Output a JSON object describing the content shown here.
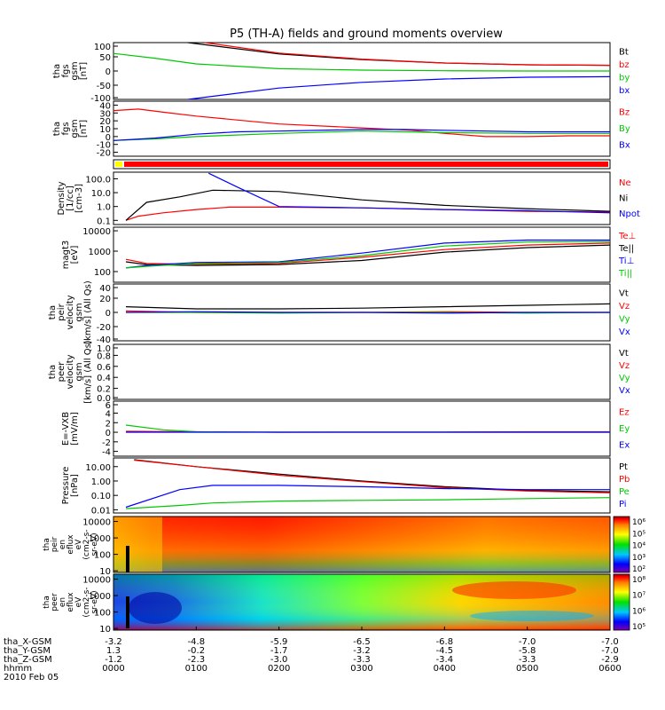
{
  "title": "P5 (TH-A) fields and ground moments overview",
  "chart_data": [
    {
      "type": "line",
      "ylabel": [
        "tha",
        "fgs",
        "gsm",
        "[nT]"
      ],
      "yticks": [
        "100",
        "50",
        "0",
        "-50",
        "-100"
      ],
      "ylim": [
        -100,
        100
      ],
      "series": [
        {
          "name": "Bt",
          "color": "#000000",
          "x": [
            0.9,
            2,
            3,
            4,
            5,
            6
          ],
          "y": [
            100,
            60,
            40,
            28,
            22,
            20
          ]
        },
        {
          "name": "bz",
          "color": "#ff0000",
          "x": [
            1.1,
            2,
            3,
            4,
            5,
            6
          ],
          "y": [
            100,
            63,
            42,
            28,
            22,
            20
          ]
        },
        {
          "name": "by",
          "color": "#00c800",
          "x": [
            0,
            0.5,
            1,
            2,
            3,
            4,
            5,
            6
          ],
          "y": [
            62,
            45,
            25,
            8,
            3,
            1,
            0,
            0
          ]
        },
        {
          "name": "bx",
          "color": "#0000ff",
          "x": [
            0.9,
            2,
            3,
            4,
            5,
            6
          ],
          "y": [
            -100,
            -60,
            -40,
            -28,
            -22,
            -20
          ]
        }
      ]
    },
    {
      "type": "line",
      "ylabel": [
        "tha",
        "fgs",
        "gsm",
        "[nT]"
      ],
      "yticks": [
        "40",
        "30",
        "20",
        "10",
        "0",
        "-10",
        "-20"
      ],
      "ylim": [
        -25,
        45
      ],
      "series": [
        {
          "name": "Bz",
          "color": "#ff0000",
          "x": [
            0,
            0.3,
            0.6,
            1,
            2,
            3,
            3.6,
            4,
            4.5,
            5,
            5.5,
            6
          ],
          "y": [
            33,
            35,
            31,
            26,
            16,
            11,
            8,
            4,
            0,
            0,
            1,
            1
          ]
        },
        {
          "name": "By",
          "color": "#00c800",
          "x": [
            0,
            0.5,
            1,
            2,
            3,
            3.5,
            4,
            5,
            6
          ],
          "y": [
            -5,
            -3,
            0,
            4,
            7,
            6,
            5,
            4,
            4
          ]
        },
        {
          "name": "Bx",
          "color": "#0000ff",
          "x": [
            0,
            0.5,
            1,
            1.5,
            2,
            3,
            3.5,
            4,
            5,
            6
          ],
          "y": [
            -5,
            -2,
            3,
            6,
            7,
            9,
            9,
            8,
            6,
            6
          ]
        }
      ]
    },
    {
      "type": "line",
      "ylabel": [
        "Density",
        "[1/cc]",
        "[cm-3]"
      ],
      "yticks": [
        "100.0",
        "10.0",
        "1.0",
        "0.1"
      ],
      "ylim": [
        0.05,
        300
      ],
      "log": true,
      "series": [
        {
          "name": "Ne",
          "color": "#ff0000",
          "x": [
            0.15,
            0.3,
            0.6,
            1,
            1.4,
            2,
            3,
            4,
            5,
            6
          ],
          "y": [
            0.1,
            0.2,
            0.35,
            0.6,
            0.9,
            0.9,
            0.8,
            0.6,
            0.45,
            0.4
          ]
        },
        {
          "name": "Ni",
          "color": "#000000",
          "x": [
            0.15,
            0.4,
            0.8,
            1.2,
            2,
            3,
            4,
            5,
            6
          ],
          "y": [
            0.1,
            2,
            5,
            15,
            12,
            3,
            1.2,
            0.7,
            0.45
          ]
        },
        {
          "name": "Npot",
          "color": "#0000ff",
          "x": [
            1.15,
            1.5,
            2,
            3,
            4,
            5,
            6
          ],
          "y": [
            250,
            25,
            1,
            0.8,
            0.6,
            0.5,
            0.35
          ]
        }
      ]
    },
    {
      "type": "line",
      "ylabel": [
        "magt3",
        "[eV]"
      ],
      "yticks": [
        "10000",
        "1000",
        "100"
      ],
      "ylim": [
        30,
        15000
      ],
      "log": true,
      "series": [
        {
          "name": "Te⊥",
          "color": "#ff0000",
          "x": [
            0.15,
            0.4,
            1,
            2,
            3,
            4,
            5,
            6
          ],
          "y": [
            400,
            250,
            230,
            250,
            500,
            1200,
            2000,
            2500
          ]
        },
        {
          "name": "Te||",
          "color": "#000000",
          "x": [
            0.15,
            0.4,
            1,
            2,
            3,
            4,
            5,
            6
          ],
          "y": [
            300,
            220,
            200,
            220,
            350,
            900,
            1500,
            2000
          ]
        },
        {
          "name": "Ti⊥",
          "color": "#0000ff",
          "x": [
            0.15,
            0.4,
            1,
            2,
            3,
            4,
            5,
            6
          ],
          "y": [
            150,
            200,
            280,
            300,
            800,
            2500,
            3500,
            3500
          ]
        },
        {
          "name": "Ti||",
          "color": "#00c800",
          "x": [
            0.15,
            0.4,
            1,
            2,
            3,
            4,
            5,
            6
          ],
          "y": [
            150,
            180,
            250,
            280,
            600,
            1800,
            2800,
            3000
          ]
        }
      ]
    },
    {
      "type": "line",
      "ylabel": [
        "tha",
        "peir",
        "velocity",
        "gsm",
        "[km/s] (All Qs)"
      ],
      "yticks": [
        "40",
        "20",
        "0",
        "-20",
        "-40"
      ],
      "ylim": [
        -40,
        40
      ],
      "series": [
        {
          "name": "Vt",
          "color": "#000000",
          "x": [
            0.15,
            1,
            2,
            3,
            4,
            5,
            6
          ],
          "y": [
            8,
            5,
            5,
            6,
            8,
            10,
            12
          ]
        },
        {
          "name": "Vz",
          "color": "#ff0000",
          "x": [
            0.15,
            1,
            2,
            3,
            4,
            5,
            6
          ],
          "y": [
            2,
            0,
            0,
            0,
            1,
            0,
            0
          ]
        },
        {
          "name": "Vy",
          "color": "#00c800",
          "x": [
            0.15,
            1,
            2,
            3,
            4,
            5,
            6
          ],
          "y": [
            0,
            0,
            -1,
            0,
            0,
            -1,
            0
          ]
        },
        {
          "name": "Vx",
          "color": "#0000ff",
          "x": [
            0.15,
            1,
            2,
            3,
            4,
            5,
            6
          ],
          "y": [
            0,
            1,
            0,
            0,
            -1,
            0,
            0
          ]
        }
      ]
    },
    {
      "type": "line",
      "ylabel": [
        "tha",
        "peer",
        "velocity",
        "gsm",
        "[km/s] (All Qs)"
      ],
      "yticks": [
        "1.0",
        "0.8",
        "0.6",
        "0.4",
        "0.2",
        "0.0"
      ],
      "ylim": [
        0,
        1
      ],
      "series": [
        {
          "name": "Vt",
          "color": "#000000",
          "x": [],
          "y": []
        },
        {
          "name": "Vz",
          "color": "#ff0000",
          "x": [],
          "y": []
        },
        {
          "name": "Vy",
          "color": "#00c800",
          "x": [],
          "y": []
        },
        {
          "name": "Vx",
          "color": "#0000ff",
          "x": [],
          "y": []
        }
      ]
    },
    {
      "type": "line",
      "ylabel": [
        "E=-VXB",
        "[mV/m]"
      ],
      "yticks": [
        "6",
        "4",
        "2",
        "0",
        "-2",
        "-4"
      ],
      "ylim": [
        -5,
        6.5
      ],
      "series": [
        {
          "name": "Ez",
          "color": "#ff0000",
          "x": [
            0.15,
            1,
            2,
            3,
            4,
            5,
            6
          ],
          "y": [
            0.2,
            0.1,
            0.0,
            0.05,
            0.05,
            0.1,
            0.1
          ]
        },
        {
          "name": "Ey",
          "color": "#00c800",
          "x": [
            0.15,
            0.6,
            1,
            2,
            3,
            4,
            5,
            6
          ],
          "y": [
            1.5,
            0.5,
            0.1,
            0.0,
            0.0,
            0.0,
            0.0,
            0.0
          ]
        },
        {
          "name": "Ex",
          "color": "#0000ff",
          "x": [
            0.15,
            1,
            2,
            3,
            4,
            5,
            6
          ],
          "y": [
            0,
            0,
            0,
            0,
            0,
            0,
            0
          ]
        }
      ]
    },
    {
      "type": "line",
      "ylabel": [
        "Pressure",
        "[nPa]"
      ],
      "yticks": [
        "10.00",
        "1.00",
        "0.10",
        "0.01"
      ],
      "ylim": [
        0.006,
        40
      ],
      "log": true,
      "series": [
        {
          "name": "Pt",
          "color": "#000000",
          "x": [
            0.25,
            1,
            2,
            3,
            4,
            5,
            6
          ],
          "y": [
            30,
            10,
            3,
            1,
            0.4,
            0.22,
            0.18
          ]
        },
        {
          "name": "Pb",
          "color": "#ff0000",
          "x": [
            0.25,
            1,
            2,
            3,
            4,
            5,
            6
          ],
          "y": [
            28,
            10,
            2.5,
            0.9,
            0.35,
            0.2,
            0.15
          ]
        },
        {
          "name": "Pe",
          "color": "#00c800",
          "x": [
            0.15,
            0.8,
            1.2,
            2,
            3,
            4,
            5,
            6
          ],
          "y": [
            0.012,
            0.02,
            0.03,
            0.04,
            0.045,
            0.05,
            0.06,
            0.07
          ]
        },
        {
          "name": "Pi",
          "color": "#0000ff",
          "x": [
            0.15,
            0.8,
            1.2,
            2,
            3,
            4,
            5,
            6
          ],
          "y": [
            0.015,
            0.25,
            0.5,
            0.5,
            0.4,
            0.3,
            0.25,
            0.25
          ]
        }
      ]
    },
    {
      "type": "heatmap",
      "ylabel": [
        "tha",
        "peir",
        "en",
        "eflux",
        "eV",
        "(cm2-s-",
        "sr-eV)"
      ],
      "yticks": [
        "10000",
        "1000",
        "100",
        "10"
      ],
      "colorbar_ticks": [
        "10⁶",
        "10⁵",
        "10⁴",
        "10³",
        "10²"
      ]
    },
    {
      "type": "heatmap",
      "ylabel": [
        "tha",
        "peer",
        "en",
        "eflux",
        "eV",
        "(cm2-s-",
        "sr-eV)"
      ],
      "yticks": [
        "10000",
        "1000",
        "100",
        "10"
      ],
      "colorbar_ticks": [
        "10⁸",
        "10⁷",
        "10⁶",
        "10⁵"
      ]
    }
  ],
  "footer": {
    "labels": [
      "tha_X-GSM",
      "tha_Y-GSM",
      "tha_Z-GSM",
      "hhmm",
      "2010 Feb 05"
    ],
    "x_gsm": [
      "-3.2",
      "-4.8",
      "-5.9",
      "-6.5",
      "-6.8",
      "-7.0",
      "-7.0"
    ],
    "y_gsm": [
      "1.3",
      "-0.2",
      "-1.7",
      "-3.2",
      "-4.5",
      "-5.8",
      "-7.0"
    ],
    "z_gsm": [
      "-1.2",
      "-2.3",
      "-3.0",
      "-3.3",
      "-3.4",
      "-3.3",
      "-2.9"
    ],
    "hhmm": [
      "0000",
      "0100",
      "0200",
      "0300",
      "0400",
      "0500",
      "0600"
    ]
  },
  "colors": {
    "black": "#000000",
    "red": "#ff0000",
    "green": "#00c800",
    "blue": "#0000ff",
    "yellow": "#ffff00"
  }
}
